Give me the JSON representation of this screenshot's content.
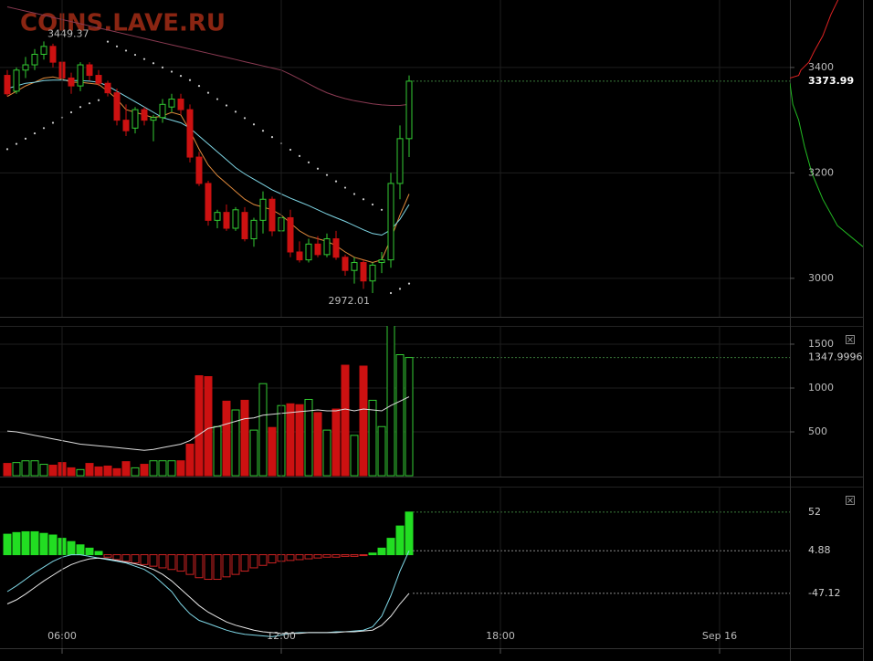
{
  "chart_data": [
    {
      "type": "candlestick",
      "watermark": "COINS.LAVE.RU",
      "x": [
        4.5,
        4.75,
        5,
        5.25,
        5.5,
        5.75,
        6,
        6.25,
        6.5,
        6.75,
        7,
        7.25,
        7.5,
        7.75,
        8,
        8.25,
        8.5,
        8.75,
        9,
        9.25,
        9.5,
        9.75,
        10,
        10.25,
        10.5,
        10.75,
        11,
        11.25,
        11.5,
        11.75,
        12,
        12.25,
        12.5,
        12.75,
        13,
        13.25,
        13.5,
        13.75,
        14,
        14.25,
        14.5,
        14.75,
        15,
        15.25,
        15.5
      ],
      "xlim": [
        4.3,
        25.925
      ],
      "open": [
        3385,
        3355,
        3395,
        3405,
        3425,
        3440,
        3410,
        3380,
        3365,
        3405,
        3385,
        3370,
        3352,
        3300,
        3285,
        3320,
        3300,
        3305,
        3325,
        3340,
        3320,
        3230,
        3180,
        3110,
        3125,
        3095,
        3125,
        3075,
        3110,
        3150,
        3090,
        3115,
        3050,
        3035,
        3065,
        3045,
        3075,
        3040,
        3015,
        3030,
        2995,
        3030,
        3035,
        3180,
        3265
      ],
      "high": [
        3395,
        3400,
        3420,
        3435,
        3449.37,
        3445,
        3415,
        3390,
        3410,
        3410,
        3395,
        3375,
        3360,
        3330,
        3325,
        3325,
        3310,
        3340,
        3350,
        3350,
        3330,
        3240,
        3185,
        3130,
        3140,
        3135,
        3135,
        3115,
        3165,
        3155,
        3130,
        3130,
        3070,
        3075,
        3080,
        3085,
        3090,
        3045,
        3040,
        3035,
        3030,
        3050,
        3200,
        3290,
        3385
      ],
      "low": [
        3345,
        3350,
        3380,
        3395,
        3415,
        3400,
        3370,
        3350,
        3355,
        3375,
        3365,
        3345,
        3290,
        3270,
        3275,
        3290,
        3260,
        3295,
        3315,
        3310,
        3220,
        3175,
        3100,
        3095,
        3090,
        3090,
        3070,
        3060,
        3085,
        3080,
        3080,
        3040,
        3030,
        3030,
        3040,
        3040,
        3035,
        3005,
        2990,
        2980,
        2972.01,
        3010,
        3020,
        3150,
        3230
      ],
      "close": [
        3350,
        3395,
        3405,
        3425,
        3440,
        3410,
        3380,
        3365,
        3405,
        3385,
        3370,
        3352,
        3300,
        3280,
        3320,
        3300,
        3305,
        3330,
        3340,
        3320,
        3230,
        3180,
        3110,
        3125,
        3095,
        3130,
        3075,
        3110,
        3150,
        3090,
        3115,
        3050,
        3035,
        3065,
        3045,
        3075,
        3040,
        3015,
        3030,
        2995,
        3025,
        3035,
        3180,
        3265,
        3373.99
      ],
      "up_color": "#33cc33",
      "down_color": "#cc1111",
      "lines": [
        {
          "color": "#e08a3c",
          "values": [
            3345,
            3355,
            3365,
            3372,
            3380,
            3382,
            3378,
            3372,
            3372,
            3370,
            3368,
            3355,
            3340,
            3320,
            3315,
            3310,
            3305,
            3308,
            3315,
            3310,
            3280,
            3245,
            3215,
            3195,
            3180,
            3165,
            3150,
            3140,
            3135,
            3130,
            3120,
            3105,
            3090,
            3080,
            3075,
            3070,
            3062,
            3050,
            3040,
            3035,
            3030,
            3035,
            3075,
            3120,
            3160
          ]
        },
        {
          "color": "#7fd7e6",
          "values": [
            3360,
            3365,
            3370,
            3372,
            3375,
            3376,
            3376,
            3375,
            3375,
            3374,
            3372,
            3365,
            3355,
            3345,
            3335,
            3325,
            3315,
            3305,
            3300,
            3295,
            3285,
            3270,
            3255,
            3240,
            3225,
            3210,
            3198,
            3188,
            3178,
            3168,
            3160,
            3152,
            3145,
            3138,
            3130,
            3122,
            3115,
            3108,
            3100,
            3092,
            3085,
            3082,
            3092,
            3112,
            3140
          ]
        },
        {
          "color": "#8a3a52",
          "values": [
            3515,
            3511,
            3507,
            3503,
            3499,
            3495,
            3491,
            3487,
            3483,
            3479,
            3475,
            3471,
            3467,
            3463,
            3459,
            3455,
            3451,
            3447,
            3443,
            3439,
            3435,
            3431,
            3427,
            3423,
            3419,
            3415,
            3411,
            3407,
            3403,
            3399,
            3395,
            3387,
            3378,
            3369,
            3360,
            3352,
            3346,
            3341,
            3337,
            3334,
            3331,
            3329,
            3328,
            3328,
            3330
          ]
        }
      ],
      "sar": {
        "color": "#cccccc",
        "values": [
          3245,
          3255,
          3265,
          3275,
          3285,
          3295,
          3305,
          3315,
          3325,
          3332,
          3338,
          3449,
          3440,
          3432,
          3424,
          3416,
          3408,
          3400,
          3392,
          3384,
          3376,
          3365,
          3352,
          3340,
          3328,
          3316,
          3304,
          3292,
          3280,
          3268,
          3256,
          3244,
          3232,
          3220,
          3208,
          3196,
          3184,
          3172,
          3160,
          3150,
          3140,
          3130,
          2972,
          2980,
          2990
        ]
      },
      "ylim": [
        2927,
        3528
      ],
      "yticks": [
        3000,
        3200,
        3400
      ],
      "grid": true
    },
    {
      "type": "volume",
      "values": [
        140,
        150,
        170,
        170,
        130,
        120,
        150,
        90,
        70,
        140,
        100,
        110,
        80,
        160,
        90,
        130,
        170,
        170,
        170,
        170,
        360,
        1140,
        1130,
        560,
        850,
        750,
        860,
        520,
        1050,
        550,
        800,
        820,
        810,
        870,
        720,
        520,
        760,
        1260,
        460,
        1250,
        860,
        560,
        1750,
        1380,
        1347.9996
      ],
      "up_color": "#33cc33",
      "down_color": "#cc1111",
      "ma": {
        "color": "#dddddd",
        "values": [
          510,
          500,
          480,
          460,
          440,
          420,
          400,
          380,
          360,
          350,
          340,
          330,
          320,
          310,
          300,
          290,
          300,
          320,
          340,
          360,
          400,
          470,
          540,
          560,
          590,
          620,
          650,
          660,
          690,
          700,
          710,
          720,
          730,
          740,
          750,
          740,
          740,
          760,
          740,
          760,
          750,
          740,
          800,
          850,
          900
        ]
      },
      "ylim": [
        -10,
        1708
      ],
      "yticks": [
        500,
        1000,
        1500
      ],
      "grid": true
    },
    {
      "type": "macd",
      "histogram": [
        25,
        27,
        28,
        28,
        26,
        24,
        20,
        16,
        12,
        8,
        4,
        -3,
        -6,
        -8,
        -10,
        -12,
        -14,
        -16,
        -18,
        -20,
        -24,
        -28,
        -30,
        -30,
        -27,
        -24,
        -20,
        -16,
        -13,
        -10,
        -8,
        -7,
        -6,
        -5,
        -4,
        -3,
        -3,
        -2,
        -2,
        -1,
        2,
        8,
        20,
        35,
        52
      ],
      "up_color": "#22dd22",
      "down_color": "#cc2222",
      "macd": {
        "color": "#7fd7e6",
        "values": [
          -45,
          -38,
          -30,
          -22,
          -15,
          -8,
          -3,
          0,
          0,
          -2,
          -4,
          -6,
          -8,
          -10,
          -14,
          -18,
          -25,
          -35,
          -45,
          -60,
          -72,
          -80,
          -84,
          -88,
          -92,
          -95,
          -97,
          -98,
          -99,
          -100,
          -98,
          -96,
          -95,
          -95,
          -95,
          -95,
          -94,
          -94,
          -93,
          -92,
          -88,
          -75,
          -50,
          -20,
          4.88
        ]
      },
      "signal": {
        "color": "#e8e8e8",
        "values": [
          -60,
          -55,
          -48,
          -40,
          -32,
          -25,
          -18,
          -12,
          -8,
          -5,
          -4,
          -5,
          -7,
          -9,
          -11,
          -14,
          -18,
          -24,
          -32,
          -42,
          -52,
          -62,
          -70,
          -76,
          -82,
          -86,
          -89,
          -92,
          -94,
          -95,
          -96,
          -96,
          -96,
          -95,
          -95,
          -95,
          -95,
          -94,
          -94,
          -93,
          -92,
          -86,
          -75,
          -60,
          -47.12
        ]
      },
      "ylim": [
        -114,
        83
      ],
      "xticks": [
        {
          "value": 6,
          "label": "06:00"
        },
        {
          "value": 12,
          "label": "12:00"
        },
        {
          "value": 18,
          "label": "18:00"
        },
        {
          "value": 24,
          "label": "Sep 16"
        }
      ]
    },
    {
      "type": "depth",
      "asks": {
        "color": "#dd2222",
        "price": [
          3380,
          3385,
          3395,
          3410,
          3430,
          3460,
          3500,
          3540
        ],
        "amount": [
          0,
          120,
          150,
          260,
          330,
          450,
          560,
          700
        ]
      },
      "bids": {
        "color": "#22bb22",
        "price": [
          3370,
          3330,
          3300,
          3250,
          3200,
          3150,
          3100,
          3060
        ],
        "amount": [
          0,
          40,
          120,
          200,
          300,
          450,
          650,
          1000
        ]
      },
      "xlim": [
        0,
        1000
      ]
    }
  ]
}
